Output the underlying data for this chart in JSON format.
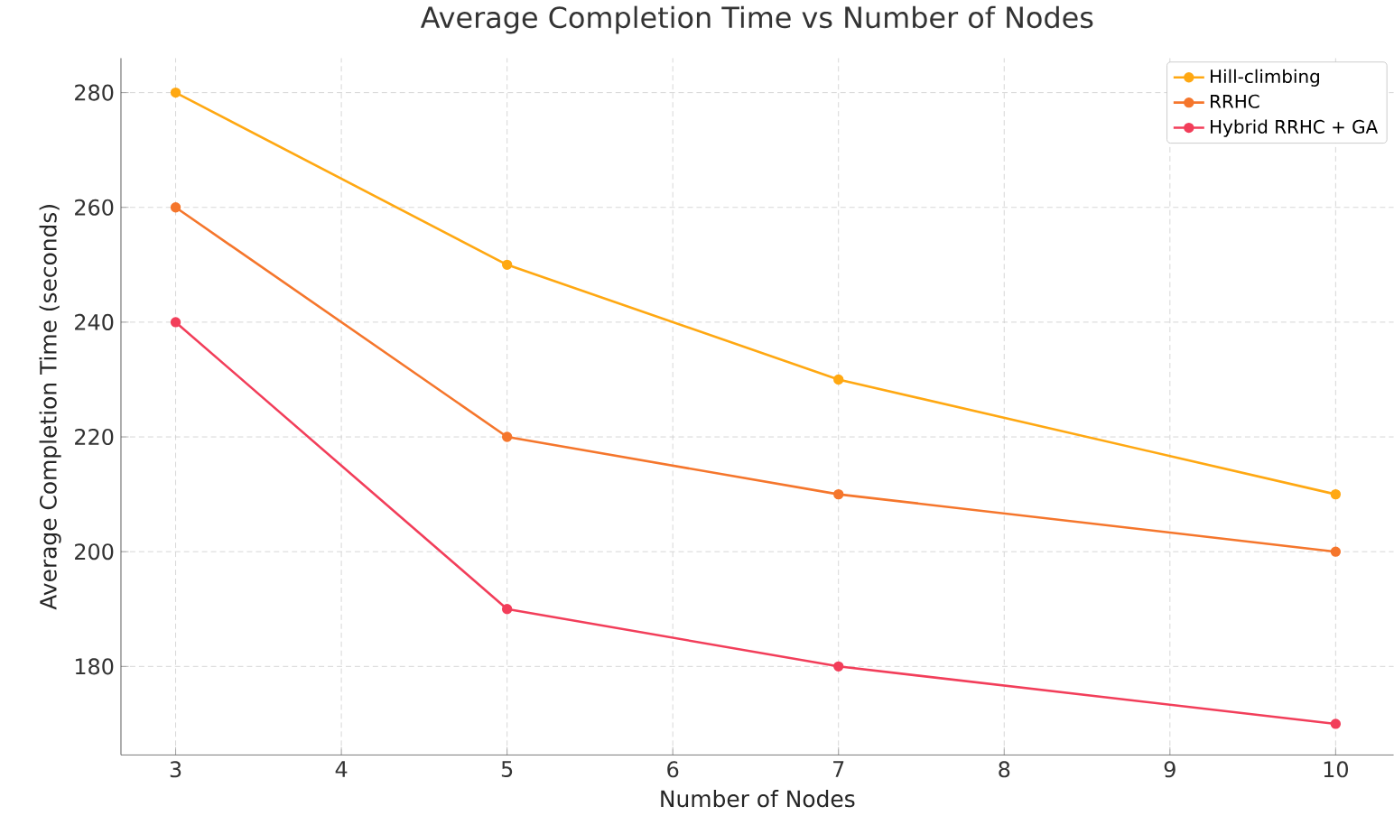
{
  "chart_data": {
    "type": "line",
    "title": "Average Completion Time vs Number of Nodes",
    "xlabel": "Number of Nodes",
    "ylabel": "Average Completion Time (seconds)",
    "x": [
      3,
      5,
      7,
      10
    ],
    "series": [
      {
        "name": "Hill-climbing",
        "color": "#ffa812",
        "values": [
          280,
          250,
          230,
          210
        ]
      },
      {
        "name": "RRHC",
        "color": "#f5762c",
        "values": [
          260,
          220,
          210,
          200
        ]
      },
      {
        "name": "Hybrid RRHC + GA",
        "color": "#f23e5a",
        "values": [
          240,
          190,
          180,
          170
        ]
      }
    ],
    "xlim": [
      2.67,
      10.35
    ],
    "ylim": [
      164.6,
      286
    ],
    "xticks": [
      3,
      4,
      5,
      6,
      7,
      8,
      9,
      10
    ],
    "yticks": [
      180,
      200,
      220,
      240,
      260,
      280
    ],
    "grid": true,
    "legend": "top right",
    "marker": "circle",
    "line_style": "solid"
  }
}
